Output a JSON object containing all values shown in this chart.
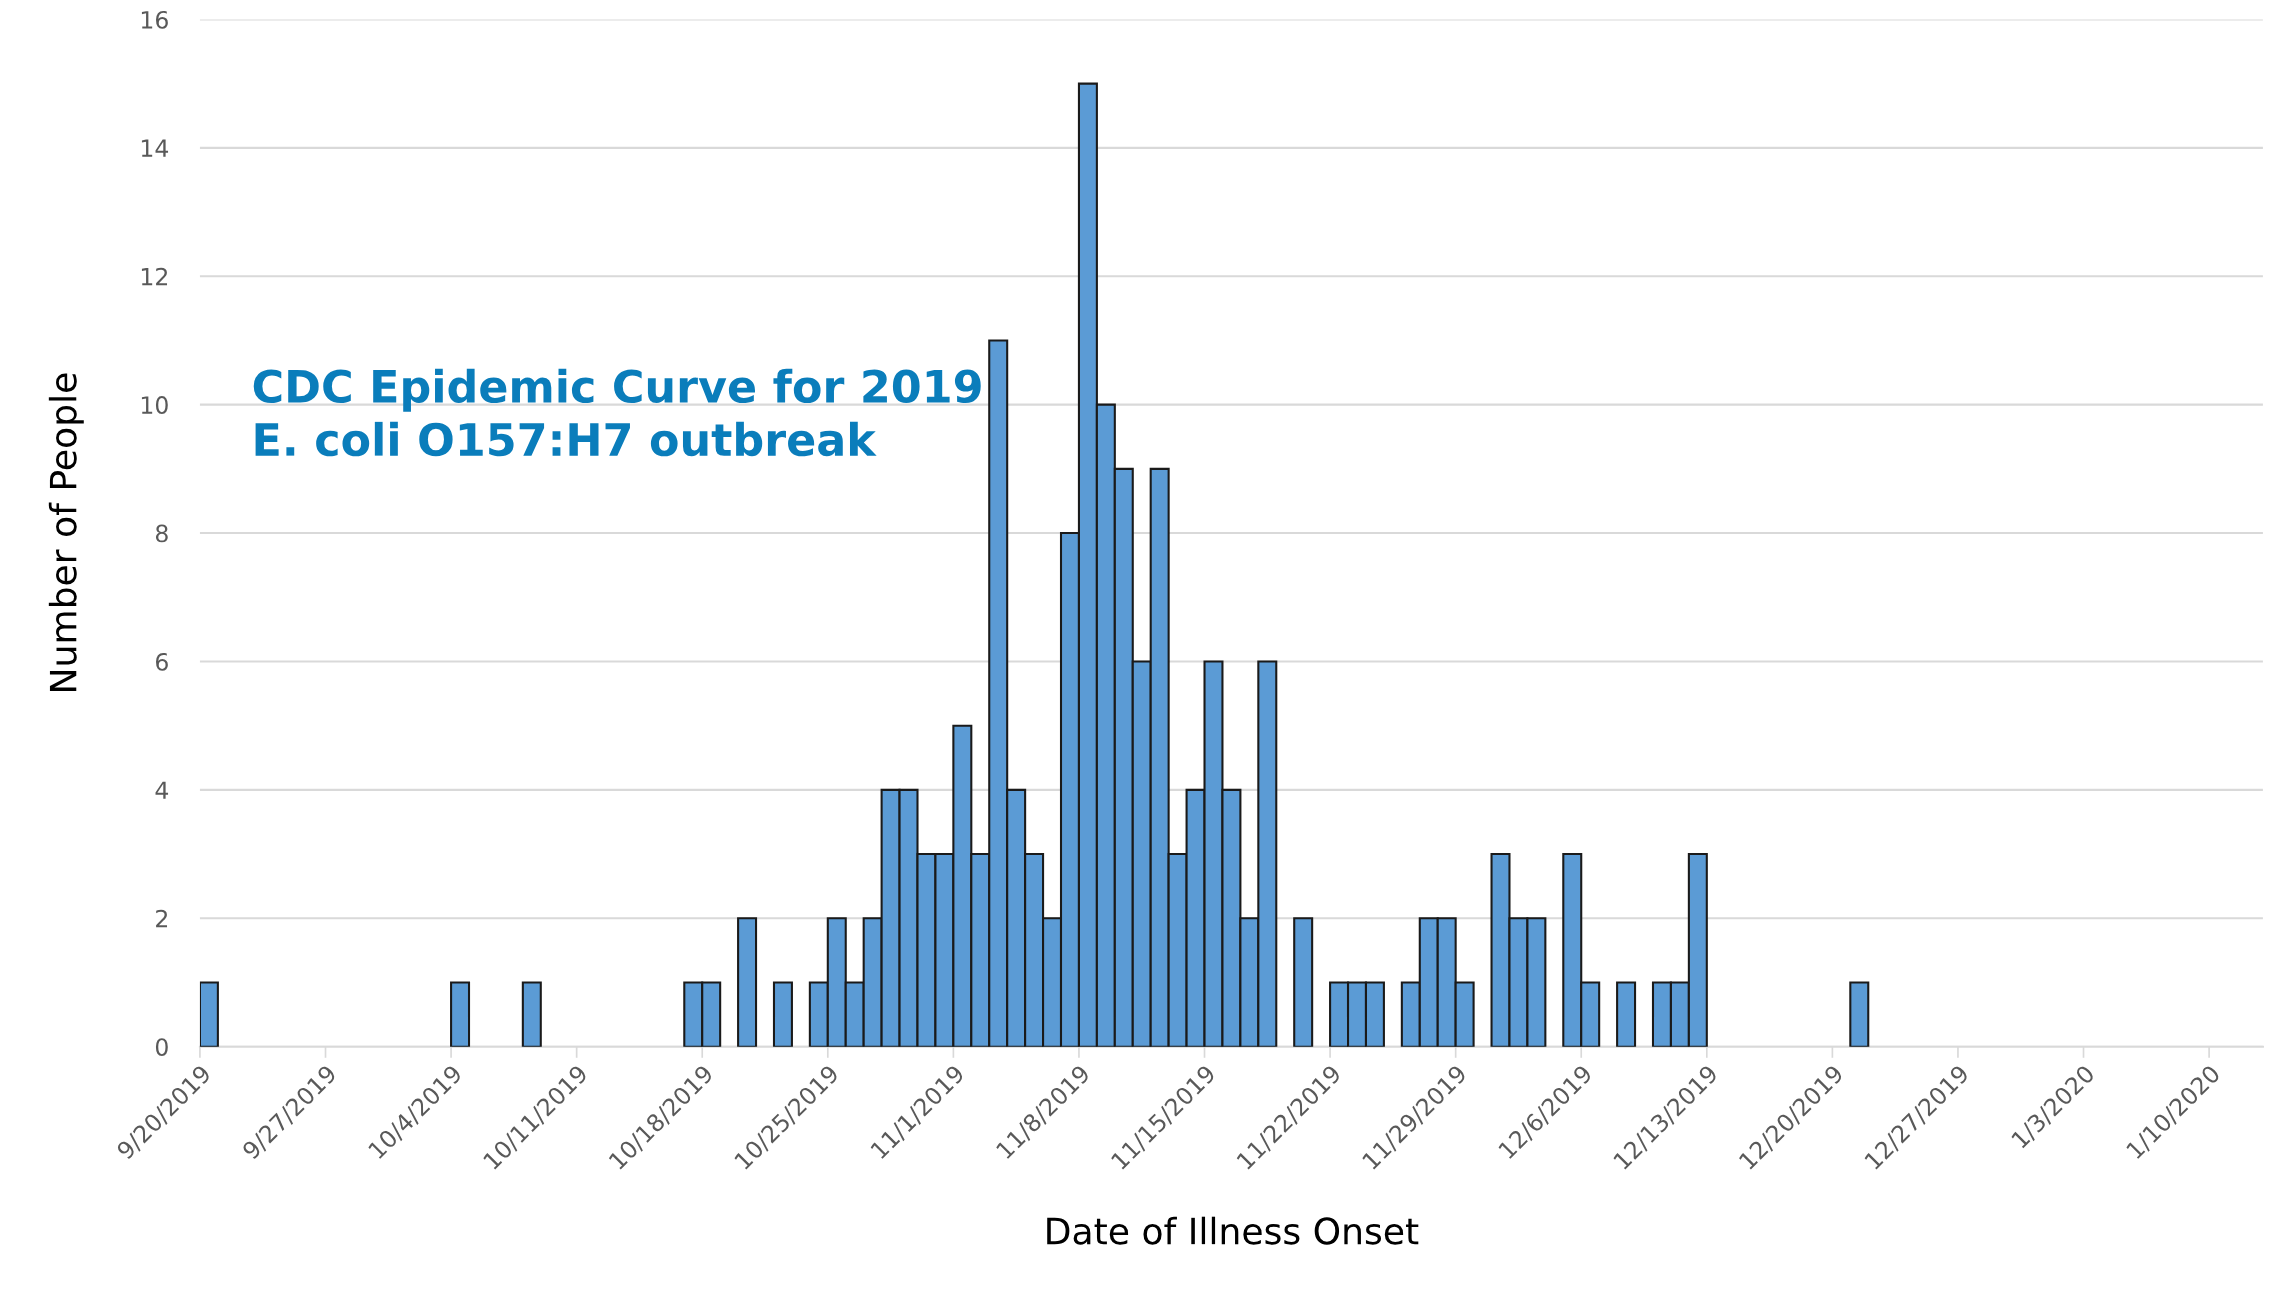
{
  "chart_data": {
    "type": "bar",
    "title": "CDC Epidemic Curve for 2019\nE. coli O157:H7 outbreak",
    "xlabel": "Date of Illness Onset",
    "ylabel": "Number of People",
    "x": [
      "2019-09-20",
      "2019-10-04",
      "2019-10-08",
      "2019-10-17",
      "2019-10-18",
      "2019-10-20",
      "2019-10-22",
      "2019-10-24",
      "2019-10-25",
      "2019-10-26",
      "2019-10-27",
      "2019-10-28",
      "2019-10-29",
      "2019-10-30",
      "2019-10-31",
      "2019-11-01",
      "2019-11-02",
      "2019-11-03",
      "2019-11-04",
      "2019-11-05",
      "2019-11-06",
      "2019-11-07",
      "2019-11-08",
      "2019-11-09",
      "2019-11-10",
      "2019-11-11",
      "2019-11-12",
      "2019-11-13",
      "2019-11-14",
      "2019-11-15",
      "2019-11-16",
      "2019-11-17",
      "2019-11-18",
      "2019-11-20",
      "2019-11-22",
      "2019-11-23",
      "2019-11-24",
      "2019-11-26",
      "2019-11-27",
      "2019-11-28",
      "2019-11-29",
      "2019-12-01",
      "2019-12-02",
      "2019-12-03",
      "2019-12-05",
      "2019-12-06",
      "2019-12-08",
      "2019-12-10",
      "2019-12-11",
      "2019-12-12",
      "2019-12-21"
    ],
    "values": [
      1,
      1,
      1,
      1,
      1,
      2,
      1,
      1,
      2,
      1,
      2,
      4,
      4,
      3,
      3,
      5,
      3,
      11,
      4,
      3,
      2,
      8,
      15,
      10,
      9,
      6,
      9,
      3,
      4,
      6,
      4,
      2,
      6,
      2,
      1,
      1,
      1,
      1,
      2,
      2,
      1,
      3,
      2,
      2,
      3,
      1,
      1,
      1,
      1,
      3,
      1
    ],
    "color": "#5b9bd5",
    "xlim": [
      "2019-09-20",
      "2020-01-13"
    ],
    "xticks": [
      {
        "value": "2019-09-20",
        "label": "9/20/2019"
      },
      {
        "value": "2019-09-27",
        "label": "9/27/2019"
      },
      {
        "value": "2019-10-04",
        "label": "10/4/2019"
      },
      {
        "value": "2019-10-11",
        "label": "10/11/2019"
      },
      {
        "value": "2019-10-18",
        "label": "10/18/2019"
      },
      {
        "value": "2019-10-25",
        "label": "10/25/2019"
      },
      {
        "value": "2019-11-01",
        "label": "11/1/2019"
      },
      {
        "value": "2019-11-08",
        "label": "11/8/2019"
      },
      {
        "value": "2019-11-15",
        "label": "11/15/2019"
      },
      {
        "value": "2019-11-22",
        "label": "11/22/2019"
      },
      {
        "value": "2019-11-29",
        "label": "11/29/2019"
      },
      {
        "value": "2019-12-06",
        "label": "12/6/2019"
      },
      {
        "value": "2019-12-13",
        "label": "12/13/2019"
      },
      {
        "value": "2019-12-20",
        "label": "12/20/2019"
      },
      {
        "value": "2019-12-27",
        "label": "12/27/2019"
      },
      {
        "value": "2020-01-03",
        "label": "1/3/2020"
      },
      {
        "value": "2020-01-10",
        "label": "1/10/2020"
      }
    ],
    "ylim": [
      0,
      16
    ],
    "yticks": [
      0,
      2,
      4,
      6,
      8,
      10,
      12,
      14,
      16
    ],
    "grid": "y",
    "legend": false
  }
}
